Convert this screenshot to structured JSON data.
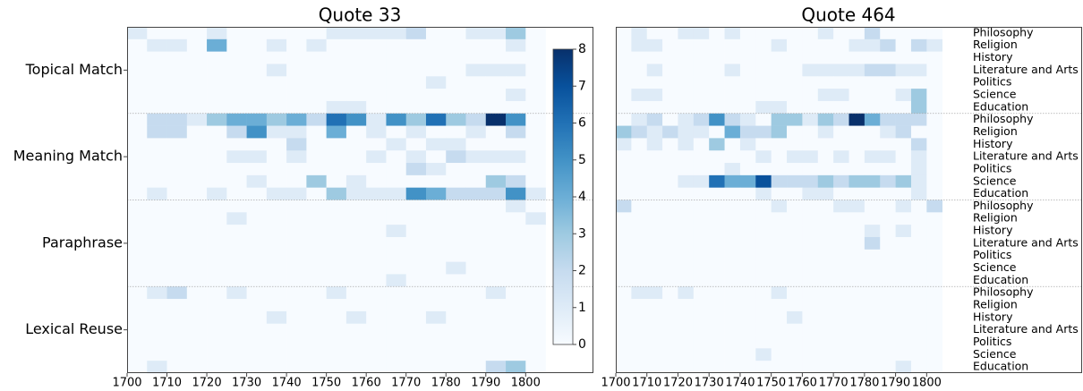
{
  "chart_data": [
    {
      "type": "heatmap",
      "title": "Quote 33",
      "groups": [
        "Topical Match",
        "Meaning Match",
        "Paraphrase",
        "Lexical Reuse"
      ],
      "x_bins": [
        1700,
        1705,
        1710,
        1715,
        1720,
        1725,
        1730,
        1735,
        1740,
        1745,
        1750,
        1755,
        1760,
        1765,
        1770,
        1775,
        1780,
        1785,
        1790,
        1795,
        1800,
        1805
      ],
      "xlim": [
        1700,
        1817
      ],
      "xticks": [
        1700,
        1710,
        1720,
        1730,
        1740,
        1750,
        1760,
        1770,
        1780,
        1790,
        1800
      ],
      "colorscale": [
        "#f7fbff",
        "#deebf7",
        "#c6dbef",
        "#9ecae1",
        "#6baed6",
        "#4292c6",
        "#2171b5",
        "#08519c",
        "#08306b"
      ],
      "zlim": [
        0,
        8
      ],
      "colorbar_ticks": [
        0,
        1,
        2,
        3,
        4,
        5,
        6,
        7,
        8
      ],
      "z": [
        [
          1,
          0,
          0,
          0,
          1,
          0,
          0,
          0,
          0,
          0,
          1,
          1,
          1,
          1,
          2,
          0,
          0,
          1,
          1,
          3,
          0
        ],
        [
          0,
          1,
          1,
          0,
          4,
          0,
          0,
          1,
          0,
          1,
          0,
          0,
          0,
          0,
          0,
          0,
          0,
          0,
          0,
          1,
          0
        ],
        [
          0,
          0,
          0,
          0,
          0,
          0,
          0,
          0,
          0,
          0,
          0,
          0,
          0,
          0,
          0,
          0,
          0,
          0,
          0,
          0,
          0
        ],
        [
          0,
          0,
          0,
          0,
          0,
          0,
          0,
          1,
          0,
          0,
          0,
          0,
          0,
          0,
          0,
          0,
          0,
          1,
          1,
          1,
          0
        ],
        [
          0,
          0,
          0,
          0,
          0,
          0,
          0,
          0,
          0,
          0,
          0,
          0,
          0,
          0,
          0,
          1,
          0,
          0,
          0,
          0,
          0
        ],
        [
          0,
          0,
          0,
          0,
          0,
          0,
          0,
          0,
          0,
          0,
          0,
          0,
          0,
          0,
          0,
          0,
          0,
          0,
          0,
          1,
          0
        ],
        [
          0,
          0,
          0,
          0,
          0,
          0,
          0,
          0,
          0,
          0,
          1,
          1,
          0,
          0,
          0,
          0,
          0,
          0,
          0,
          0,
          0
        ],
        [
          0,
          2,
          2,
          1,
          3,
          4,
          4,
          3,
          4,
          2,
          6,
          5,
          1,
          5,
          3,
          6,
          3,
          2,
          8,
          5,
          0
        ],
        [
          0,
          2,
          2,
          0,
          0,
          2,
          5,
          1,
          1,
          0,
          4,
          0,
          1,
          0,
          1,
          0,
          0,
          1,
          0,
          2,
          0
        ],
        [
          0,
          0,
          0,
          0,
          0,
          0,
          0,
          0,
          2,
          0,
          0,
          0,
          0,
          1,
          0,
          1,
          1,
          0,
          0,
          0,
          0
        ],
        [
          0,
          0,
          0,
          0,
          0,
          1,
          1,
          0,
          1,
          0,
          0,
          0,
          1,
          0,
          1,
          0,
          2,
          1,
          1,
          1,
          0
        ],
        [
          0,
          0,
          0,
          0,
          0,
          0,
          0,
          0,
          0,
          0,
          0,
          0,
          0,
          0,
          2,
          1,
          0,
          0,
          0,
          0,
          0
        ],
        [
          0,
          0,
          0,
          0,
          0,
          0,
          1,
          0,
          0,
          3,
          0,
          1,
          0,
          0,
          0,
          0,
          0,
          0,
          3,
          2,
          0
        ],
        [
          0,
          1,
          0,
          0,
          1,
          0,
          0,
          1,
          1,
          0,
          3,
          1,
          1,
          1,
          5,
          4,
          2,
          2,
          2,
          5,
          1
        ],
        [
          0,
          0,
          0,
          0,
          0,
          0,
          0,
          0,
          0,
          0,
          0,
          0,
          0,
          0,
          0,
          0,
          0,
          0,
          0,
          1,
          0
        ],
        [
          0,
          0,
          0,
          0,
          0,
          1,
          0,
          0,
          0,
          0,
          0,
          0,
          0,
          0,
          0,
          0,
          0,
          0,
          0,
          0,
          1
        ],
        [
          0,
          0,
          0,
          0,
          0,
          0,
          0,
          0,
          0,
          0,
          0,
          0,
          0,
          1,
          0,
          0,
          0,
          0,
          0,
          0,
          0
        ],
        [
          0,
          0,
          0,
          0,
          0,
          0,
          0,
          0,
          0,
          0,
          0,
          0,
          0,
          0,
          0,
          0,
          0,
          0,
          0,
          0,
          0
        ],
        [
          0,
          0,
          0,
          0,
          0,
          0,
          0,
          0,
          0,
          0,
          0,
          0,
          0,
          0,
          0,
          0,
          0,
          0,
          0,
          0,
          0
        ],
        [
          0,
          0,
          0,
          0,
          0,
          0,
          0,
          0,
          0,
          0,
          0,
          0,
          0,
          0,
          0,
          0,
          1,
          0,
          0,
          0,
          0
        ],
        [
          0,
          0,
          0,
          0,
          0,
          0,
          0,
          0,
          0,
          0,
          0,
          0,
          0,
          1,
          0,
          0,
          0,
          0,
          0,
          0,
          0
        ],
        [
          0,
          1,
          2,
          0,
          0,
          1,
          0,
          0,
          0,
          0,
          1,
          0,
          0,
          0,
          0,
          0,
          0,
          0,
          1,
          0,
          0
        ],
        [
          0,
          0,
          0,
          0,
          0,
          0,
          0,
          0,
          0,
          0,
          0,
          0,
          0,
          0,
          0,
          0,
          0,
          0,
          0,
          0,
          0
        ],
        [
          0,
          0,
          0,
          0,
          0,
          0,
          0,
          1,
          0,
          0,
          0,
          1,
          0,
          0,
          0,
          1,
          0,
          0,
          0,
          0,
          0
        ],
        [
          0,
          0,
          0,
          0,
          0,
          0,
          0,
          0,
          0,
          0,
          0,
          0,
          0,
          0,
          0,
          0,
          0,
          0,
          0,
          0,
          0
        ],
        [
          0,
          0,
          0,
          0,
          0,
          0,
          0,
          0,
          0,
          0,
          0,
          0,
          0,
          0,
          0,
          0,
          0,
          0,
          0,
          0,
          0
        ],
        [
          0,
          0,
          0,
          0,
          0,
          0,
          0,
          0,
          0,
          0,
          0,
          0,
          0,
          0,
          0,
          0,
          0,
          0,
          0,
          0,
          0
        ],
        [
          0,
          1,
          0,
          0,
          0,
          0,
          0,
          0,
          0,
          0,
          0,
          0,
          0,
          0,
          0,
          0,
          0,
          0,
          2,
          3,
          0
        ]
      ]
    },
    {
      "type": "heatmap",
      "title": "Quote 464",
      "categories": [
        "Philosophy",
        "Religion",
        "History",
        "Literature and Arts",
        "Politics",
        "Science",
        "Education"
      ],
      "x_bins": [
        1700,
        1705,
        1710,
        1715,
        1720,
        1725,
        1730,
        1735,
        1740,
        1745,
        1750,
        1755,
        1760,
        1765,
        1770,
        1775,
        1780,
        1785,
        1790,
        1795,
        1800,
        1805
      ],
      "xlim": [
        1700,
        1850
      ],
      "xticks": [
        1700,
        1710,
        1720,
        1730,
        1740,
        1750,
        1760,
        1770,
        1780,
        1790,
        1800
      ],
      "colorscale": [
        "#f7fbff",
        "#deebf7",
        "#c6dbef",
        "#9ecae1",
        "#6baed6",
        "#4292c6",
        "#2171b5",
        "#08519c",
        "#08306b"
      ],
      "zlim": [
        0,
        8
      ],
      "z": [
        [
          0,
          1,
          0,
          0,
          1,
          1,
          0,
          1,
          0,
          0,
          0,
          0,
          0,
          1,
          0,
          0,
          2,
          0,
          0,
          0,
          0
        ],
        [
          0,
          1,
          1,
          0,
          0,
          0,
          0,
          0,
          0,
          0,
          1,
          0,
          0,
          0,
          0,
          1,
          1,
          2,
          0,
          2,
          1
        ],
        [
          0,
          0,
          0,
          0,
          0,
          0,
          0,
          0,
          0,
          0,
          0,
          0,
          0,
          0,
          0,
          0,
          0,
          0,
          0,
          0,
          0
        ],
        [
          0,
          0,
          1,
          0,
          0,
          0,
          0,
          1,
          0,
          0,
          0,
          0,
          1,
          1,
          1,
          1,
          2,
          2,
          1,
          1,
          0
        ],
        [
          0,
          0,
          0,
          0,
          0,
          0,
          0,
          0,
          0,
          0,
          0,
          0,
          0,
          0,
          0,
          0,
          0,
          0,
          0,
          0,
          0
        ],
        [
          0,
          1,
          1,
          0,
          0,
          0,
          0,
          0,
          0,
          0,
          0,
          0,
          0,
          1,
          1,
          0,
          0,
          0,
          1,
          3,
          0
        ],
        [
          0,
          0,
          0,
          0,
          0,
          0,
          0,
          0,
          0,
          1,
          1,
          0,
          0,
          0,
          0,
          0,
          0,
          0,
          0,
          3,
          0
        ],
        [
          0,
          1,
          2,
          0,
          1,
          2,
          5,
          2,
          1,
          0,
          3,
          3,
          1,
          3,
          2,
          8,
          4,
          2,
          2,
          2,
          0
        ],
        [
          3,
          2,
          1,
          2,
          1,
          1,
          0,
          4,
          2,
          2,
          3,
          0,
          0,
          1,
          0,
          0,
          0,
          1,
          2,
          0,
          0
        ],
        [
          1,
          0,
          1,
          0,
          1,
          0,
          3,
          0,
          1,
          0,
          0,
          0,
          0,
          0,
          0,
          0,
          0,
          0,
          0,
          2,
          0
        ],
        [
          0,
          0,
          0,
          0,
          0,
          0,
          0,
          0,
          0,
          1,
          0,
          1,
          1,
          0,
          1,
          0,
          1,
          1,
          0,
          1,
          0
        ],
        [
          0,
          0,
          0,
          0,
          0,
          0,
          0,
          1,
          0,
          0,
          0,
          0,
          0,
          0,
          0,
          0,
          0,
          0,
          0,
          1,
          0
        ],
        [
          0,
          0,
          0,
          0,
          1,
          1,
          6,
          4,
          4,
          7,
          2,
          2,
          2,
          3,
          2,
          3,
          3,
          2,
          3,
          1,
          0
        ],
        [
          0,
          0,
          0,
          0,
          0,
          0,
          0,
          0,
          0,
          1,
          0,
          0,
          1,
          1,
          0,
          0,
          0,
          0,
          0,
          1,
          0
        ],
        [
          2,
          0,
          0,
          0,
          0,
          0,
          0,
          0,
          0,
          0,
          1,
          0,
          0,
          0,
          1,
          1,
          0,
          0,
          1,
          0,
          2
        ],
        [
          0,
          0,
          0,
          0,
          0,
          0,
          0,
          0,
          0,
          0,
          0,
          0,
          0,
          0,
          0,
          0,
          0,
          0,
          0,
          0,
          0
        ],
        [
          0,
          0,
          0,
          0,
          0,
          0,
          0,
          0,
          0,
          0,
          0,
          0,
          0,
          0,
          0,
          0,
          1,
          0,
          1,
          0,
          0
        ],
        [
          0,
          0,
          0,
          0,
          0,
          0,
          0,
          0,
          0,
          0,
          0,
          0,
          0,
          0,
          0,
          0,
          2,
          0,
          0,
          0,
          0
        ],
        [
          0,
          0,
          0,
          0,
          0,
          0,
          0,
          0,
          0,
          0,
          0,
          0,
          0,
          0,
          0,
          0,
          0,
          0,
          0,
          0,
          0
        ],
        [
          0,
          0,
          0,
          0,
          0,
          0,
          0,
          0,
          0,
          0,
          0,
          0,
          0,
          0,
          0,
          0,
          0,
          0,
          0,
          0,
          0
        ],
        [
          0,
          0,
          0,
          0,
          0,
          0,
          0,
          0,
          0,
          0,
          0,
          0,
          0,
          0,
          0,
          0,
          0,
          0,
          0,
          0,
          0
        ],
        [
          0,
          1,
          1,
          0,
          1,
          0,
          0,
          0,
          0,
          0,
          1,
          0,
          0,
          0,
          0,
          0,
          0,
          0,
          0,
          0,
          0
        ],
        [
          0,
          0,
          0,
          0,
          0,
          0,
          0,
          0,
          0,
          0,
          0,
          0,
          0,
          0,
          0,
          0,
          0,
          0,
          0,
          0,
          0
        ],
        [
          0,
          0,
          0,
          0,
          0,
          0,
          0,
          0,
          0,
          0,
          0,
          1,
          0,
          0,
          0,
          0,
          0,
          0,
          0,
          0,
          0
        ],
        [
          0,
          0,
          0,
          0,
          0,
          0,
          0,
          0,
          0,
          0,
          0,
          0,
          0,
          0,
          0,
          0,
          0,
          0,
          0,
          0,
          0
        ],
        [
          0,
          0,
          0,
          0,
          0,
          0,
          0,
          0,
          0,
          0,
          0,
          0,
          0,
          0,
          0,
          0,
          0,
          0,
          0,
          0,
          0
        ],
        [
          0,
          0,
          0,
          0,
          0,
          0,
          0,
          0,
          0,
          1,
          0,
          0,
          0,
          0,
          0,
          0,
          0,
          0,
          0,
          0,
          0
        ],
        [
          0,
          0,
          0,
          0,
          0,
          0,
          0,
          0,
          0,
          0,
          0,
          0,
          0,
          0,
          0,
          0,
          0,
          0,
          1,
          0,
          0
        ]
      ]
    }
  ]
}
